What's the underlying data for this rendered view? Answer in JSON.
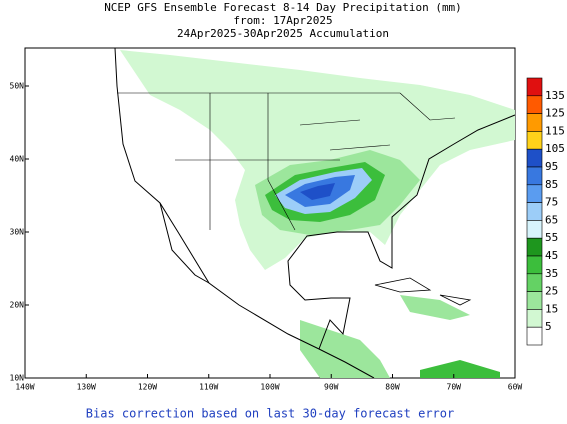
{
  "title_lines": [
    "NCEP GFS Ensemble Forecast 8-14 Day Precipitation (mm)",
    "from: 17Apr2025",
    "24Apr2025-30Apr2025 Accumulation"
  ],
  "lon_labels": [
    "140W",
    "130W",
    "120W",
    "110W",
    "100W",
    "90W",
    "80W",
    "70W",
    "60W"
  ],
  "lat_labels": [
    "50N",
    "40N",
    "30N",
    "20N",
    "10N"
  ],
  "colorbar": {
    "levels": [
      135,
      125,
      115,
      105,
      95,
      85,
      75,
      65,
      55,
      45,
      35,
      25,
      15,
      5
    ],
    "colors": [
      "#e01010",
      "#ff5a00",
      "#ff9a00",
      "#ffd21a",
      "#1e50c8",
      "#3878e0",
      "#5a9cf0",
      "#9ccdf8",
      "#d8f4fc",
      "#1e961e",
      "#3cbe3c",
      "#64d264",
      "#9ce69c",
      "#d2f8d2",
      "#ffffff"
    ]
  },
  "footer": "Bias correction based on last 30-day forecast error"
}
